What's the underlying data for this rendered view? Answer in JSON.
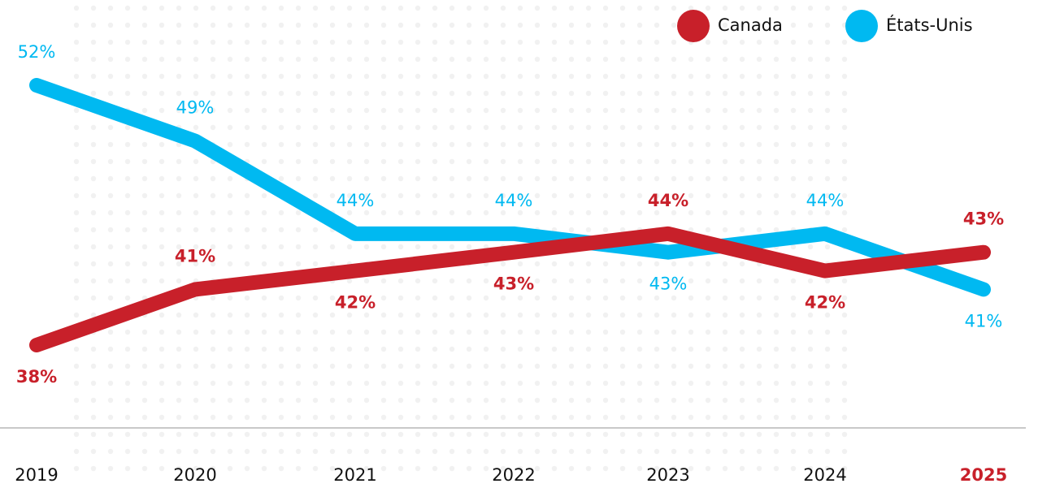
{
  "chart_data": {
    "type": "line",
    "categories": [
      "2019",
      "2020",
      "2021",
      "2022",
      "2023",
      "2024",
      "2025"
    ],
    "series": [
      {
        "name": "Canada",
        "color": "#c8202a",
        "values": [
          38,
          41,
          42,
          43,
          44,
          42,
          43
        ],
        "value_labels": [
          "38%",
          "41%",
          "42%",
          "43%",
          "44%",
          "42%",
          "43%"
        ]
      },
      {
        "name": "États-Unis",
        "color": "#00b9f1",
        "values": [
          52,
          49,
          44,
          44,
          43,
          44,
          41
        ],
        "value_labels": [
          "52%",
          "49%",
          "44%",
          "44%",
          "43%",
          "44%",
          "41%"
        ]
      }
    ],
    "legend": "top-right"
  }
}
